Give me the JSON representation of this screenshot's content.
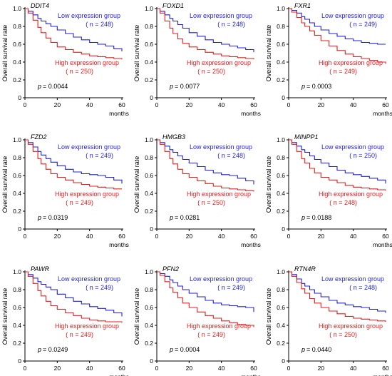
{
  "colors": {
    "low": "#1f1fe0",
    "high": "#e81c1c",
    "axis": "#000000"
  },
  "chart_data": [
    {
      "type": "line",
      "gene": "DDIT4",
      "ylabel": "Overall survival rate",
      "xlabel": "months",
      "xlim": [
        0,
        60
      ],
      "ylim": [
        0,
        1.0
      ],
      "xticks": [
        "0",
        "20",
        "40",
        "60"
      ],
      "yticks": [
        "0",
        "0.2",
        "0.4",
        "0.6",
        "0.8",
        "1.0"
      ],
      "p_text": "= 0.0044",
      "series": [
        {
          "name": "Low expression group",
          "n_text": "( n = 248)",
          "x": [
            0,
            2,
            5,
            8,
            10,
            13,
            16,
            20,
            25,
            30,
            35,
            40,
            45,
            50,
            55,
            60
          ],
          "y": [
            1.0,
            0.97,
            0.93,
            0.89,
            0.86,
            0.83,
            0.8,
            0.76,
            0.72,
            0.68,
            0.65,
            0.62,
            0.6,
            0.58,
            0.55,
            0.52
          ]
        },
        {
          "name": "High expression group",
          "n_text": "( n = 250)",
          "x": [
            0,
            2,
            5,
            8,
            10,
            13,
            16,
            20,
            25,
            30,
            35,
            40,
            45,
            50,
            55,
            60
          ],
          "y": [
            1.0,
            0.95,
            0.87,
            0.79,
            0.73,
            0.67,
            0.62,
            0.57,
            0.54,
            0.51,
            0.49,
            0.47,
            0.46,
            0.45,
            0.44,
            0.43
          ]
        }
      ]
    },
    {
      "type": "line",
      "gene": "FOXD1",
      "ylabel": "Overall survival rate",
      "xlabel": "months",
      "xlim": [
        0,
        60
      ],
      "ylim": [
        0,
        1.0
      ],
      "xticks": [
        "0",
        "20",
        "40",
        "60"
      ],
      "yticks": [
        "0",
        "0.2",
        "0.4",
        "0.6",
        "0.8",
        "1.0"
      ],
      "p_text": "= 0.0077",
      "series": [
        {
          "name": "Low expression group",
          "n_text": "( n = 248)",
          "x": [
            0,
            2,
            5,
            8,
            10,
            13,
            16,
            20,
            25,
            30,
            35,
            40,
            45,
            50,
            55,
            60
          ],
          "y": [
            1.0,
            0.97,
            0.93,
            0.89,
            0.86,
            0.82,
            0.78,
            0.73,
            0.69,
            0.65,
            0.62,
            0.6,
            0.58,
            0.56,
            0.54,
            0.51
          ]
        },
        {
          "name": "High expression group",
          "n_text": "( n = 250)",
          "x": [
            0,
            2,
            5,
            8,
            10,
            13,
            16,
            20,
            25,
            30,
            35,
            40,
            45,
            50,
            55,
            60
          ],
          "y": [
            1.0,
            0.95,
            0.86,
            0.78,
            0.72,
            0.66,
            0.61,
            0.57,
            0.54,
            0.51,
            0.49,
            0.47,
            0.46,
            0.45,
            0.44,
            0.43
          ]
        }
      ]
    },
    {
      "type": "line",
      "gene": "FXR1",
      "ylabel": "Overall survival rate",
      "xlabel": "months",
      "xlim": [
        0,
        60
      ],
      "ylim": [
        0,
        1.0
      ],
      "xticks": [
        "0",
        "20",
        "40",
        "60"
      ],
      "yticks": [
        "0",
        "0.2",
        "0.4",
        "0.6",
        "0.8",
        "1.0"
      ],
      "p_text": "= 0.0003",
      "series": [
        {
          "name": "Low expression group",
          "n_text": "( n = 249)",
          "x": [
            0,
            2,
            5,
            8,
            10,
            13,
            16,
            20,
            25,
            30,
            35,
            40,
            45,
            50,
            55,
            60
          ],
          "y": [
            1.0,
            0.98,
            0.95,
            0.91,
            0.88,
            0.84,
            0.8,
            0.76,
            0.72,
            0.69,
            0.66,
            0.64,
            0.62,
            0.61,
            0.6,
            0.6
          ]
        },
        {
          "name": "High expression group",
          "n_text": "( n = 249)",
          "x": [
            0,
            2,
            5,
            8,
            10,
            13,
            16,
            20,
            25,
            30,
            35,
            40,
            45,
            50,
            55,
            60
          ],
          "y": [
            1.0,
            0.96,
            0.9,
            0.84,
            0.8,
            0.75,
            0.7,
            0.64,
            0.58,
            0.53,
            0.49,
            0.46,
            0.44,
            0.42,
            0.4,
            0.38
          ]
        }
      ]
    },
    {
      "type": "line",
      "gene": "FZD2",
      "ylabel": "Overall survival rate",
      "xlabel": "months",
      "xlim": [
        0,
        60
      ],
      "ylim": [
        0,
        1.0
      ],
      "xticks": [
        "0",
        "20",
        "40",
        "60"
      ],
      "yticks": [
        "0",
        "0.2",
        "0.4",
        "0.6",
        "0.8",
        "1.0"
      ],
      "p_text": "= 0.0319",
      "series": [
        {
          "name": "Low expression group",
          "n_text": "( n = 249)",
          "x": [
            0,
            2,
            5,
            8,
            10,
            13,
            16,
            20,
            25,
            30,
            35,
            40,
            45,
            50,
            55,
            60
          ],
          "y": [
            1.0,
            0.97,
            0.92,
            0.87,
            0.83,
            0.79,
            0.75,
            0.71,
            0.67,
            0.64,
            0.62,
            0.61,
            0.6,
            0.58,
            0.55,
            0.51
          ]
        },
        {
          "name": "High expression group",
          "n_text": "( n = 249)",
          "x": [
            0,
            2,
            5,
            8,
            10,
            13,
            16,
            20,
            25,
            30,
            35,
            40,
            45,
            50,
            55,
            60
          ],
          "y": [
            1.0,
            0.95,
            0.87,
            0.79,
            0.73,
            0.67,
            0.62,
            0.58,
            0.55,
            0.52,
            0.5,
            0.48,
            0.47,
            0.46,
            0.45,
            0.45
          ]
        }
      ]
    },
    {
      "type": "line",
      "gene": "HMGB3",
      "ylabel": "Overall survival rate",
      "xlabel": "months",
      "xlim": [
        0,
        60
      ],
      "ylim": [
        0,
        1.0
      ],
      "xticks": [
        "0",
        "20",
        "40",
        "60"
      ],
      "yticks": [
        "0",
        "0.2",
        "0.4",
        "0.6",
        "0.8",
        "1.0"
      ],
      "p_text": "= 0.0281",
      "series": [
        {
          "name": "Low expression group",
          "n_text": "( n = 248)",
          "x": [
            0,
            2,
            5,
            8,
            10,
            13,
            16,
            20,
            25,
            30,
            35,
            40,
            45,
            50,
            55,
            60
          ],
          "y": [
            1.0,
            0.97,
            0.93,
            0.89,
            0.86,
            0.82,
            0.78,
            0.74,
            0.7,
            0.66,
            0.63,
            0.61,
            0.6,
            0.57,
            0.54,
            0.5
          ]
        },
        {
          "name": "High expression group",
          "n_text": "( n = 250)",
          "x": [
            0,
            2,
            5,
            8,
            10,
            13,
            16,
            20,
            25,
            30,
            35,
            40,
            45,
            50,
            55,
            60
          ],
          "y": [
            1.0,
            0.95,
            0.87,
            0.79,
            0.73,
            0.67,
            0.62,
            0.58,
            0.54,
            0.51,
            0.48,
            0.46,
            0.45,
            0.44,
            0.43,
            0.42
          ]
        }
      ]
    },
    {
      "type": "line",
      "gene": "MINPP1",
      "ylabel": "Overall survival rate",
      "xlabel": "months",
      "xlim": [
        0,
        60
      ],
      "ylim": [
        0,
        1.0
      ],
      "xticks": [
        "0",
        "20",
        "40",
        "60"
      ],
      "yticks": [
        "0",
        "0.2",
        "0.4",
        "0.6",
        "0.8",
        "1.0"
      ],
      "p_text": "= 0.0188",
      "series": [
        {
          "name": "Low expression group",
          "n_text": "( n = 250)",
          "x": [
            0,
            2,
            5,
            8,
            10,
            13,
            16,
            20,
            25,
            30,
            35,
            40,
            45,
            50,
            55,
            60
          ],
          "y": [
            1.0,
            0.97,
            0.93,
            0.89,
            0.86,
            0.82,
            0.78,
            0.74,
            0.7,
            0.66,
            0.63,
            0.61,
            0.59,
            0.57,
            0.55,
            0.51
          ]
        },
        {
          "name": "High expression group",
          "n_text": "( n = 248)",
          "x": [
            0,
            2,
            5,
            8,
            10,
            13,
            16,
            20,
            25,
            30,
            35,
            40,
            45,
            50,
            55,
            60
          ],
          "y": [
            1.0,
            0.95,
            0.87,
            0.79,
            0.74,
            0.68,
            0.63,
            0.58,
            0.55,
            0.52,
            0.49,
            0.47,
            0.46,
            0.45,
            0.44,
            0.43
          ]
        }
      ]
    },
    {
      "type": "line",
      "gene": "PAWR",
      "ylabel": "Overall survival rate",
      "xlabel": "months",
      "xlim": [
        0,
        60
      ],
      "ylim": [
        0,
        1.0
      ],
      "xticks": [
        "0",
        "20",
        "40",
        "60"
      ],
      "yticks": [
        "0",
        "0.2",
        "0.4",
        "0.6",
        "0.8",
        "1.0"
      ],
      "p_text": "= 0.0249",
      "series": [
        {
          "name": "Low expression group",
          "n_text": "( n = 249)",
          "x": [
            0,
            2,
            5,
            8,
            10,
            13,
            16,
            20,
            25,
            30,
            35,
            40,
            45,
            50,
            55,
            60
          ],
          "y": [
            1.0,
            0.97,
            0.93,
            0.89,
            0.86,
            0.83,
            0.8,
            0.75,
            0.71,
            0.67,
            0.64,
            0.61,
            0.59,
            0.57,
            0.54,
            0.5
          ]
        },
        {
          "name": "High expression group",
          "n_text": "( n = 249)",
          "x": [
            0,
            2,
            5,
            8,
            10,
            13,
            16,
            20,
            25,
            30,
            35,
            40,
            45,
            50,
            55,
            60
          ],
          "y": [
            1.0,
            0.95,
            0.87,
            0.79,
            0.73,
            0.67,
            0.62,
            0.58,
            0.54,
            0.51,
            0.48,
            0.46,
            0.45,
            0.44,
            0.44,
            0.43
          ]
        }
      ]
    },
    {
      "type": "line",
      "gene": "PFN2",
      "ylabel": "Overall survival rate",
      "xlabel": "months",
      "xlim": [
        0,
        60
      ],
      "ylim": [
        0,
        1.0
      ],
      "xticks": [
        "0",
        "20",
        "40",
        "60"
      ],
      "yticks": [
        "0",
        "0.2",
        "0.4",
        "0.6",
        "0.8",
        "1.0"
      ],
      "p_text": "= 0.0004",
      "series": [
        {
          "name": "Low expression group",
          "n_text": "( n = 249)",
          "x": [
            0,
            2,
            5,
            8,
            10,
            13,
            16,
            20,
            25,
            30,
            35,
            40,
            45,
            50,
            55,
            60
          ],
          "y": [
            1.0,
            0.98,
            0.95,
            0.91,
            0.88,
            0.84,
            0.8,
            0.76,
            0.72,
            0.68,
            0.65,
            0.63,
            0.62,
            0.61,
            0.6,
            0.55
          ]
        },
        {
          "name": "High expression group",
          "n_text": "( n = 249)",
          "x": [
            0,
            2,
            5,
            8,
            10,
            13,
            16,
            20,
            25,
            30,
            35,
            40,
            45,
            50,
            55,
            60
          ],
          "y": [
            1.0,
            0.96,
            0.89,
            0.82,
            0.77,
            0.71,
            0.65,
            0.6,
            0.55,
            0.51,
            0.48,
            0.45,
            0.43,
            0.41,
            0.4,
            0.38
          ]
        }
      ]
    },
    {
      "type": "line",
      "gene": "RTN4R",
      "ylabel": "Overall survival rate",
      "xlabel": "months",
      "xlim": [
        0,
        60
      ],
      "ylim": [
        0,
        1.0
      ],
      "xticks": [
        "0",
        "20",
        "40",
        "60"
      ],
      "yticks": [
        "0",
        "0.2",
        "0.4",
        "0.6",
        "0.8",
        "1.0"
      ],
      "p_text": "= 0.0440",
      "series": [
        {
          "name": "Low expression group",
          "n_text": "( n = 248)",
          "x": [
            0,
            2,
            5,
            8,
            10,
            13,
            16,
            20,
            25,
            30,
            35,
            40,
            45,
            50,
            55,
            60
          ],
          "y": [
            1.0,
            0.97,
            0.92,
            0.87,
            0.84,
            0.8,
            0.76,
            0.72,
            0.68,
            0.65,
            0.63,
            0.61,
            0.6,
            0.58,
            0.56,
            0.54
          ]
        },
        {
          "name": "High expression group",
          "n_text": "( n = 250)",
          "x": [
            0,
            2,
            5,
            8,
            10,
            13,
            16,
            20,
            25,
            30,
            35,
            40,
            45,
            50,
            55,
            60
          ],
          "y": [
            1.0,
            0.95,
            0.88,
            0.81,
            0.76,
            0.7,
            0.65,
            0.6,
            0.56,
            0.53,
            0.5,
            0.48,
            0.47,
            0.46,
            0.45,
            0.44
          ]
        }
      ]
    }
  ]
}
